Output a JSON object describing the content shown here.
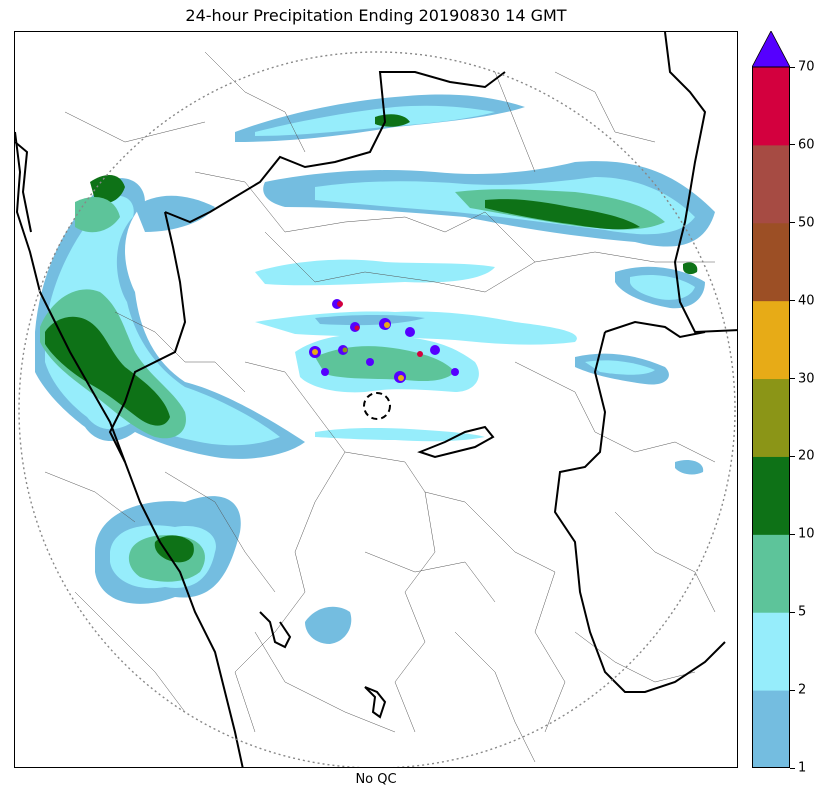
{
  "title": "24-hour Precipitation Ending 20190830 14 GMT",
  "xlabel": "No QC",
  "colorbar": {
    "levels": [
      "1",
      "2",
      "5",
      "10",
      "20",
      "30",
      "40",
      "50",
      "60",
      "70"
    ],
    "colors": [
      "#74bde0",
      "#96edfb",
      "#5dc49a",
      "#0e7217",
      "#8b9517",
      "#e7ab17",
      "#9c4f25",
      "#a64b43",
      "#d3003e"
    ],
    "extend_color": "#5500ff"
  },
  "legend_bins": [
    {
      "min": 1,
      "max": 2,
      "color": "#74bde0"
    },
    {
      "min": 2,
      "max": 5,
      "color": "#96edfb"
    },
    {
      "min": 5,
      "max": 10,
      "color": "#5dc49a"
    },
    {
      "min": 10,
      "max": 20,
      "color": "#0e7217"
    },
    {
      "min": 20,
      "max": 30,
      "color": "#8b9517"
    },
    {
      "min": 30,
      "max": 40,
      "color": "#e7ab17"
    },
    {
      "min": 40,
      "max": 50,
      "color": "#9c4f25"
    },
    {
      "min": 50,
      "max": 60,
      "color": "#a64b43"
    },
    {
      "min": 60,
      "max": 70,
      "color": "#d3003e"
    },
    {
      "min": 70,
      "max": null,
      "color": "#5500ff"
    }
  ]
}
